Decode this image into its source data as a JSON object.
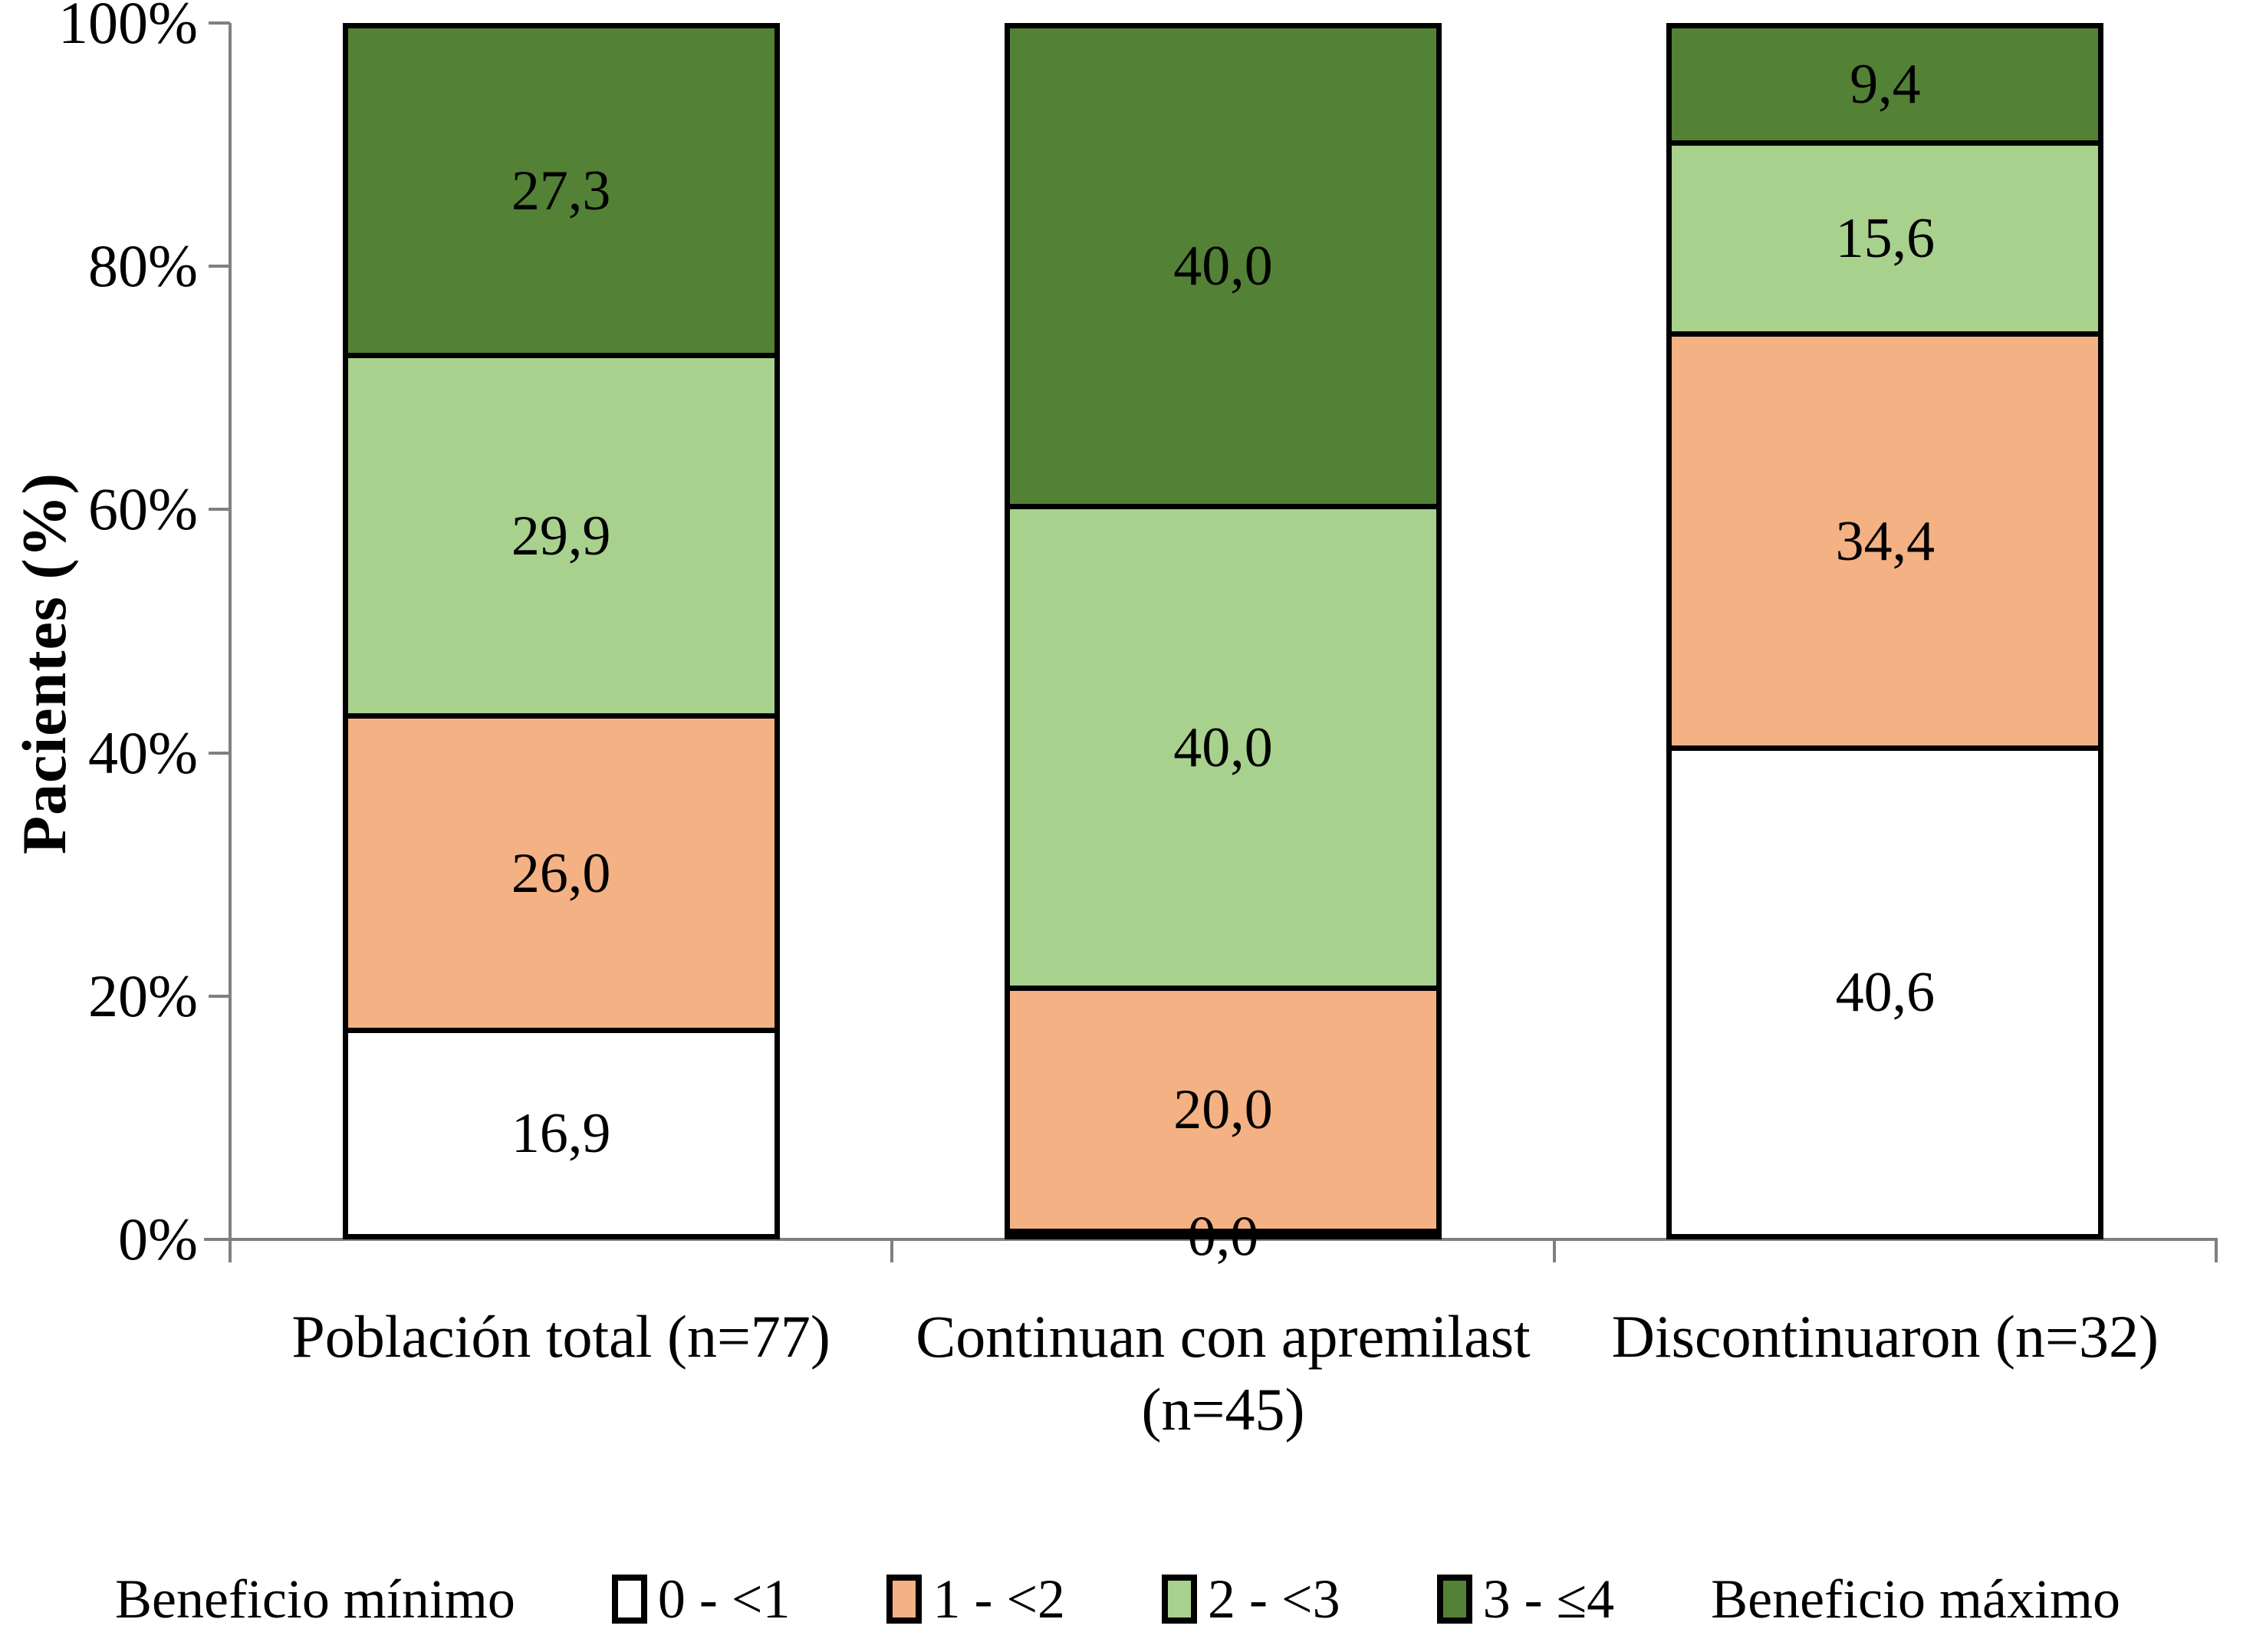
{
  "page": {
    "background": "#ffffff"
  },
  "chart_data": {
    "type": "bar",
    "stacking": "percent",
    "title": "",
    "xlabel": "",
    "ylabel": "Pacientes (%)",
    "ylim": [
      0,
      100
    ],
    "y_ticks": [
      "0%",
      "20%",
      "40%",
      "60%",
      "80%",
      "100%"
    ],
    "grid": "off",
    "legend_position": "bottom",
    "categories": [
      "Población total (n=77)",
      "Continuan con apremilast (n=45)",
      "Discontinuaron (n=32)"
    ],
    "category_lines": [
      [
        "Población total (n=77)"
      ],
      [
        "Continuan con apremilast",
        "(n=45)"
      ],
      [
        "Discontinuaron (n=32)"
      ]
    ],
    "series": [
      {
        "name": "0 - <1",
        "color": "#FFFFFF",
        "values": [
          16.9,
          0.0,
          40.6
        ],
        "labels": [
          "16,9",
          "0,0",
          "40,6"
        ]
      },
      {
        "name": "1 - <2",
        "color": "#F4B183",
        "values": [
          26.0,
          20.0,
          34.4
        ],
        "labels": [
          "26,0",
          "20,0",
          "34,4"
        ]
      },
      {
        "name": "2 - <3",
        "color": "#A9D18E",
        "values": [
          29.9,
          40.0,
          15.6
        ],
        "labels": [
          "29,9",
          "40,0",
          "15,6"
        ]
      },
      {
        "name": "3 - ≤4",
        "color": "#538135",
        "values": [
          27.3,
          40.0,
          9.4
        ],
        "labels": [
          "27,3",
          "40,0",
          "9,4"
        ]
      }
    ],
    "legend": {
      "min_label": "Beneficio mínimo",
      "max_label": "Beneficio máximo",
      "items": [
        {
          "label": "0 - <1",
          "color": "#FFFFFF"
        },
        {
          "label": "1 - <2",
          "color": "#F4B183"
        },
        {
          "label": "2 - <3",
          "color": "#A9D18E"
        },
        {
          "label": "3 - ≤4",
          "color": "#538135"
        }
      ]
    },
    "colors": {
      "bar_border": "#000000",
      "axis": "#808080",
      "label_text": "#000000"
    }
  }
}
